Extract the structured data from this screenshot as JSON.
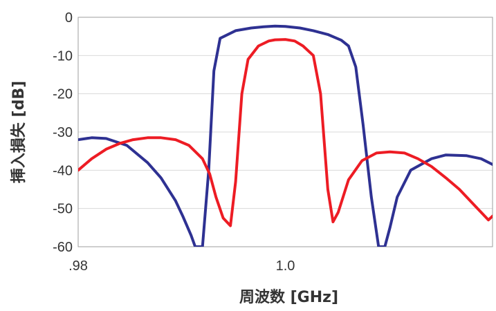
{
  "chart_data": {
    "type": "line",
    "xlabel": "周波数 [GHz]",
    "ylabel": "挿入損失 [dB]",
    "xlim": [
      0.98,
      1.02
    ],
    "ylim": [
      -60,
      0
    ],
    "x_ticks": [
      ".98",
      "1.0"
    ],
    "y_ticks": [
      "0",
      "-10",
      "-20",
      "-30",
      "-40",
      "-50",
      "-60"
    ],
    "grid": "horizontal",
    "colors": {
      "blue": "#2e3192",
      "red": "#ed1c24",
      "grid": "#d9d9d9"
    },
    "series": [
      {
        "color": "#2e3192",
        "x": [
          0.98,
          0.9813,
          0.9827,
          0.9847,
          0.9867,
          0.988,
          0.9894,
          0.9901,
          0.9909,
          0.9913,
          0.992,
          0.9926,
          0.9931,
          0.9937,
          0.9952,
          0.9967,
          0.9979,
          0.999,
          1.0,
          1.0014,
          1.0027,
          1.0041,
          1.0054,
          1.0061,
          1.0068,
          1.0075,
          1.0083,
          1.009,
          1.0096,
          1.0101,
          1.0108,
          1.0121,
          1.0141,
          1.0155,
          1.0175,
          1.0189,
          1.02
        ],
        "y": [
          -32,
          -31.5,
          -31.7,
          -33.5,
          -38,
          -42,
          -48,
          -52,
          -57,
          -60,
          -60,
          -40,
          -14,
          -5.5,
          -3.5,
          -2.8,
          -2.5,
          -2.3,
          -2.4,
          -2.8,
          -3.5,
          -4.5,
          -6,
          -7.5,
          -13,
          -28,
          -47,
          -60,
          -60,
          -55,
          -47,
          -40,
          -37,
          -36,
          -36.2,
          -37,
          -38.5
        ]
      },
      {
        "color": "#ed1c24",
        "x": [
          0.98,
          0.9813,
          0.9827,
          0.984,
          0.9853,
          0.9867,
          0.988,
          0.9894,
          0.9907,
          0.992,
          0.9927,
          0.9933,
          0.994,
          0.9947,
          0.9952,
          0.9958,
          0.9964,
          0.9974,
          0.9984,
          0.999,
          1.0,
          1.0009,
          1.0017,
          1.0027,
          1.0034,
          1.0041,
          1.0046,
          1.0051,
          1.0061,
          1.0074,
          1.0088,
          1.0101,
          1.0115,
          1.0128,
          1.0141,
          1.0155,
          1.0168,
          1.0182,
          1.0196,
          1.02
        ],
        "y": [
          -40,
          -37,
          -34.5,
          -33,
          -32,
          -31.5,
          -31.5,
          -32,
          -33.5,
          -37,
          -41,
          -47,
          -52.5,
          -54.5,
          -43,
          -20,
          -11,
          -7.5,
          -6.2,
          -5.9,
          -5.8,
          -6.2,
          -7.5,
          -10,
          -20,
          -45,
          -53.5,
          -51,
          -42.5,
          -37.5,
          -35.5,
          -35.2,
          -35.5,
          -37,
          -39,
          -42,
          -45,
          -49,
          -53,
          -52
        ]
      }
    ]
  }
}
